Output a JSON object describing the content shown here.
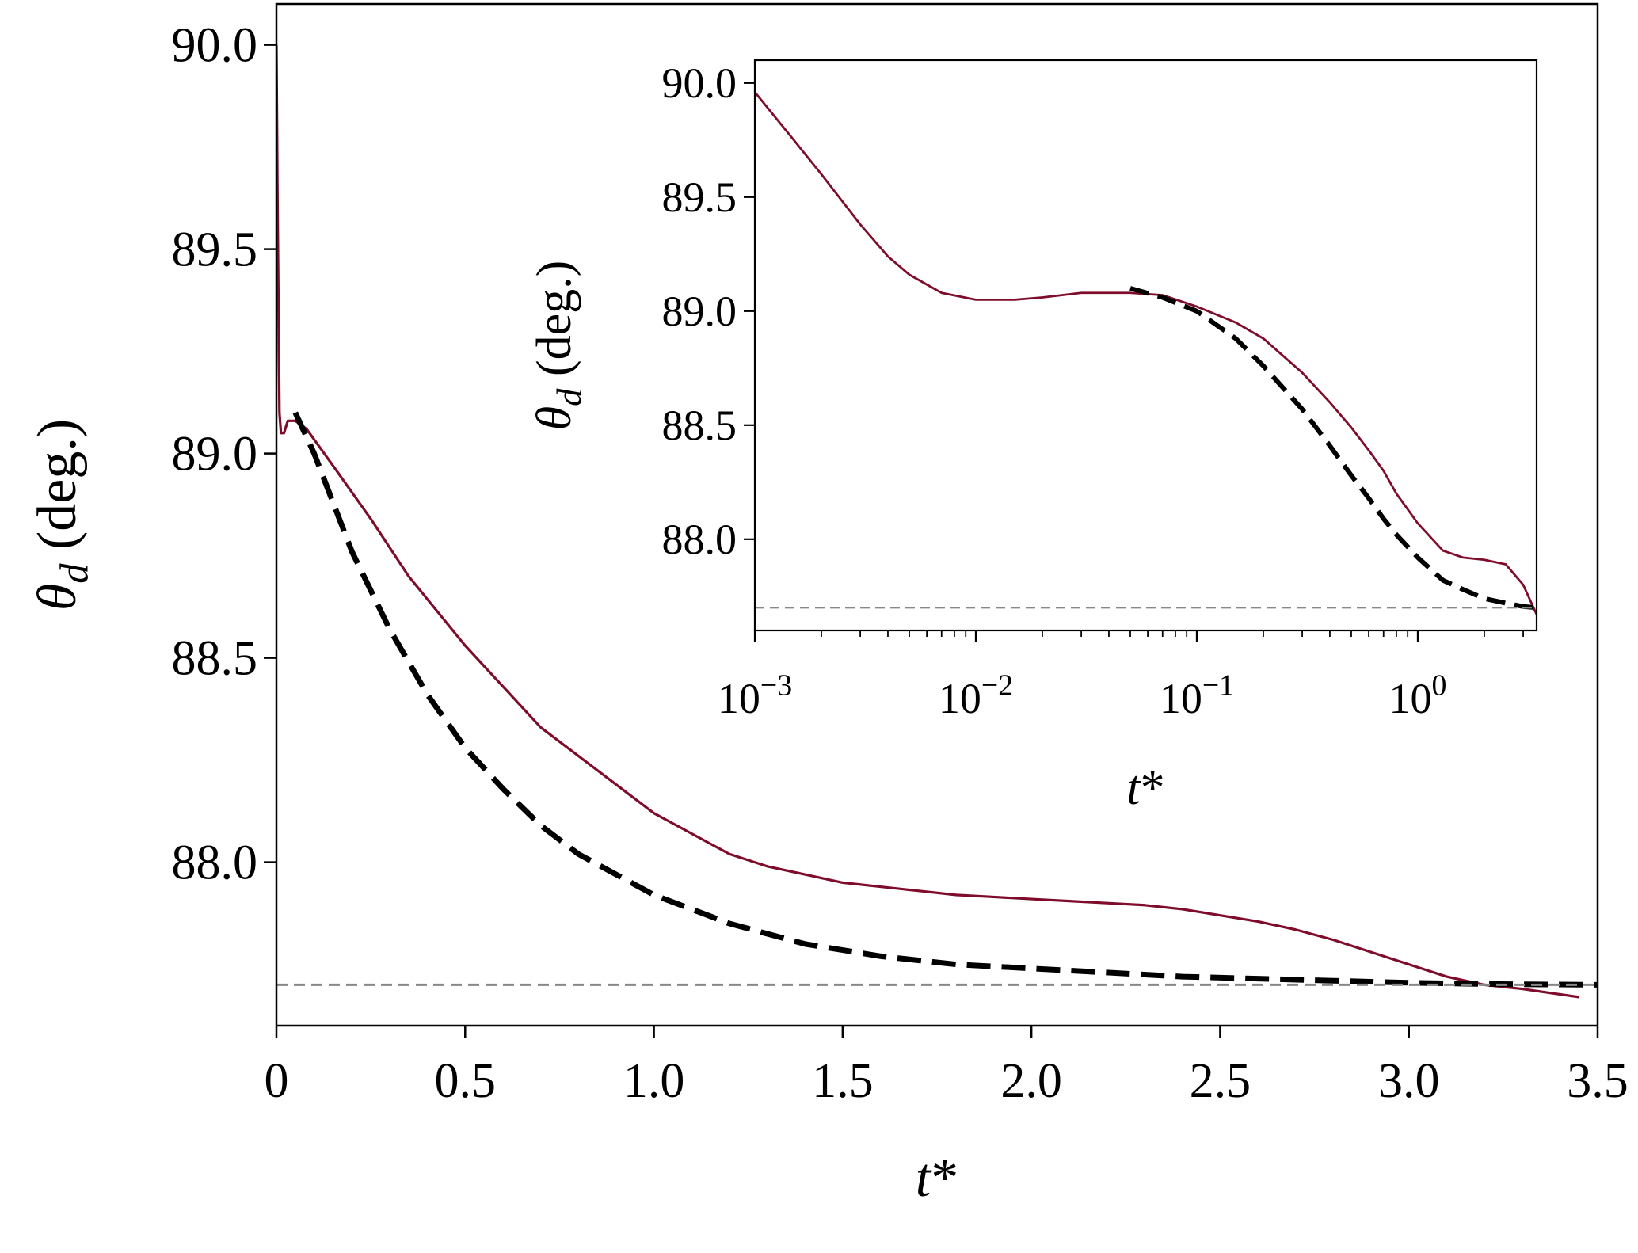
{
  "chart_data": [
    {
      "type": "line",
      "xlabel": "t*",
      "ylabel": "θd (deg.)",
      "xlim": [
        0,
        3.5
      ],
      "ylim": [
        87.6,
        90.1
      ],
      "x_scale": "linear",
      "x_ticks": [
        0,
        0.5,
        1.0,
        1.5,
        2.0,
        2.5,
        3.0,
        3.5
      ],
      "x_tick_labels": [
        "0",
        "0.5",
        "1.0",
        "1.5",
        "2.0",
        "2.5",
        "3.0",
        "3.5"
      ],
      "y_ticks": [
        88.0,
        88.5,
        89.0,
        89.5,
        90.0
      ],
      "y_tick_labels": [
        "88.0",
        "88.5",
        "89.0",
        "89.5",
        "90.0"
      ],
      "grid": false,
      "series": [
        {
          "style": "solid",
          "color": "#7f0c2a",
          "x": [
            0,
            0.003,
            0.008,
            0.012,
            0.02,
            0.03,
            0.05,
            0.08,
            0.15,
            0.25,
            0.35,
            0.5,
            0.7,
            0.9,
            1.0,
            1.1,
            1.2,
            1.3,
            1.4,
            1.5,
            1.6,
            1.7,
            1.8,
            1.9,
            2.0,
            2.1,
            2.2,
            2.3,
            2.4,
            2.5,
            2.6,
            2.7,
            2.8,
            2.9,
            3.0,
            3.1,
            3.2,
            3.3,
            3.45
          ],
          "y": [
            90.0,
            89.6,
            89.1,
            89.05,
            89.05,
            89.08,
            89.08,
            89.06,
            88.97,
            88.84,
            88.7,
            88.53,
            88.33,
            88.19,
            88.12,
            88.07,
            88.02,
            87.99,
            87.97,
            87.95,
            87.94,
            87.93,
            87.92,
            87.915,
            87.91,
            87.905,
            87.9,
            87.895,
            87.885,
            87.87,
            87.855,
            87.835,
            87.81,
            87.78,
            87.75,
            87.72,
            87.7,
            87.69,
            87.67
          ]
        },
        {
          "style": "dashed",
          "color": "#000000",
          "x": [
            0.05,
            0.1,
            0.2,
            0.3,
            0.4,
            0.5,
            0.6,
            0.7,
            0.8,
            1.0,
            1.2,
            1.4,
            1.6,
            1.8,
            2.0,
            2.2,
            2.4,
            2.6,
            2.8,
            3.0,
            3.2,
            3.5
          ],
          "y": [
            89.1,
            89.0,
            88.76,
            88.57,
            88.41,
            88.28,
            88.18,
            88.09,
            88.02,
            87.92,
            87.85,
            87.8,
            87.77,
            87.75,
            87.74,
            87.73,
            87.72,
            87.715,
            87.71,
            87.705,
            87.702,
            87.7
          ]
        },
        {
          "style": "dashed-thin",
          "color": "#888888",
          "x": [
            0,
            3.5
          ],
          "y": [
            87.7,
            87.7
          ]
        }
      ]
    },
    {
      "type": "line",
      "xlabel": "t*",
      "ylabel": "θd (deg.)",
      "xlim": [
        0.001,
        3.45
      ],
      "ylim": [
        87.6,
        90.1
      ],
      "x_scale": "log",
      "x_ticks": [
        0.001,
        0.01,
        0.1,
        1
      ],
      "x_tick_labels": [
        "10−3",
        "10−2",
        "10−1",
        "100"
      ],
      "y_ticks": [
        88.0,
        88.5,
        89.0,
        89.5,
        90.0
      ],
      "y_tick_labels": [
        "88.0",
        "88.5",
        "89.0",
        "89.5",
        "90.0"
      ],
      "grid": false,
      "series": [
        {
          "style": "solid",
          "color": "#7f0c2a",
          "x": [
            0.001,
            0.0015,
            0.002,
            0.003,
            0.004,
            0.005,
            0.007,
            0.01,
            0.015,
            0.02,
            0.03,
            0.05,
            0.07,
            0.1,
            0.15,
            0.2,
            0.3,
            0.4,
            0.5,
            0.6,
            0.7,
            0.8,
            1.0,
            1.3,
            1.6,
            2.0,
            2.5,
            3.0,
            3.45
          ],
          "y": [
            89.96,
            89.75,
            89.6,
            89.38,
            89.24,
            89.16,
            89.08,
            89.05,
            89.05,
            89.06,
            89.08,
            89.08,
            89.07,
            89.02,
            88.95,
            88.88,
            88.73,
            88.6,
            88.49,
            88.39,
            88.3,
            88.2,
            88.07,
            87.95,
            87.92,
            87.91,
            87.89,
            87.8,
            87.67
          ]
        },
        {
          "style": "dashed",
          "color": "#000000",
          "x": [
            0.05,
            0.07,
            0.1,
            0.15,
            0.2,
            0.3,
            0.4,
            0.5,
            0.6,
            0.7,
            0.8,
            1.0,
            1.3,
            1.6,
            2.0,
            2.5,
            3.0,
            3.45
          ],
          "y": [
            89.1,
            89.06,
            89.0,
            88.88,
            88.76,
            88.57,
            88.41,
            88.28,
            88.18,
            88.09,
            88.02,
            87.92,
            87.82,
            87.78,
            87.74,
            87.72,
            87.705,
            87.7
          ]
        },
        {
          "style": "dashed-thin",
          "color": "#888888",
          "x": [
            0.001,
            3.45
          ],
          "y": [
            87.7,
            87.7
          ]
        }
      ]
    }
  ]
}
